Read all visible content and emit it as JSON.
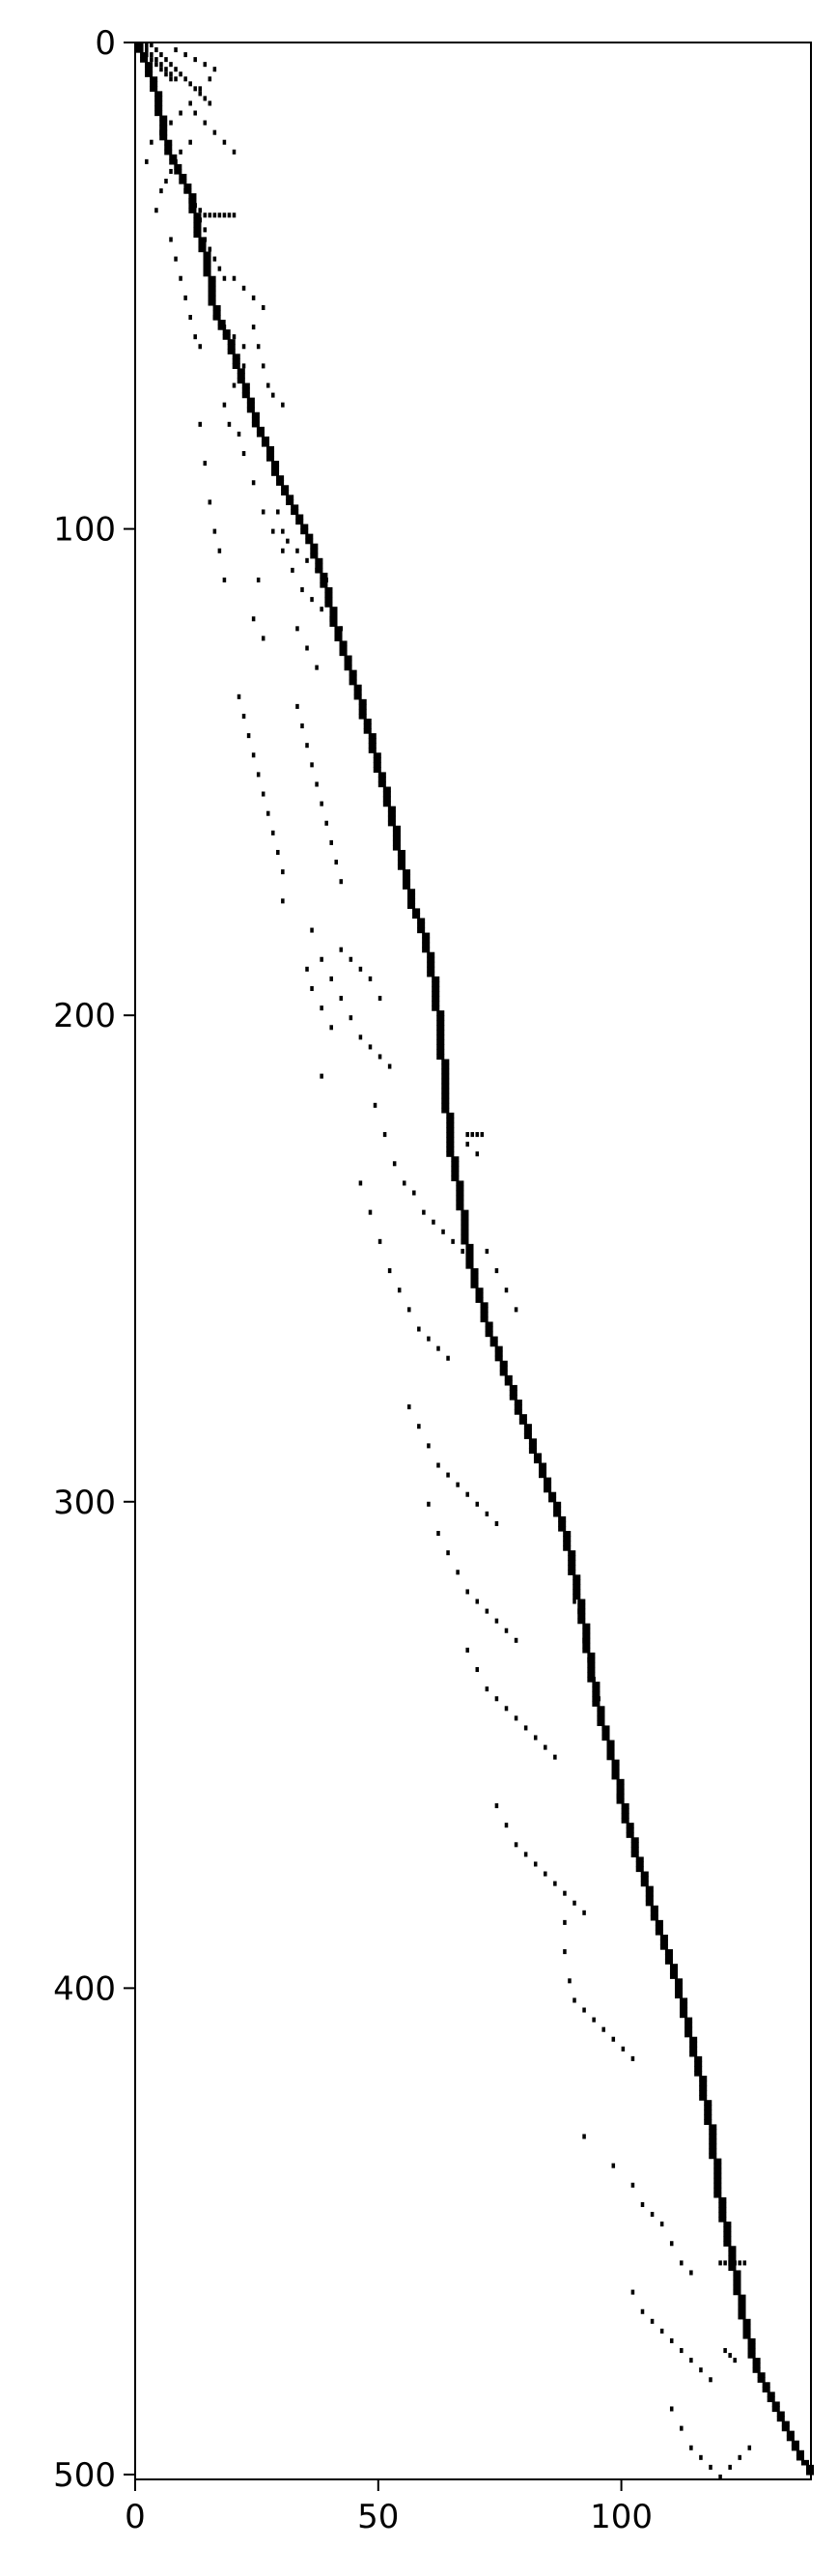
{
  "chart_data": {
    "type": "heatmap",
    "subtype": "sparsity-pattern",
    "title": "",
    "xlabel": "",
    "ylabel": "",
    "xlim": [
      0,
      139
    ],
    "ylim": [
      501,
      0
    ],
    "x_ticks": [
      {
        "value": 0,
        "label": "0"
      },
      {
        "value": 50,
        "label": "50"
      },
      {
        "value": 100,
        "label": "100"
      }
    ],
    "y_ticks": [
      {
        "value": 0,
        "label": "0"
      },
      {
        "value": 100,
        "label": "100"
      },
      {
        "value": 200,
        "label": "200"
      },
      {
        "value": 300,
        "label": "300"
      },
      {
        "value": 400,
        "label": "400"
      },
      {
        "value": 500,
        "label": "500"
      }
    ],
    "grid": false,
    "colors": {
      "nonzero": "#000000",
      "zero": "#ffffff",
      "frame": "#000000"
    },
    "diagonal_path": [
      [
        0,
        0
      ],
      [
        3,
        8
      ],
      [
        4,
        12
      ],
      [
        6,
        22
      ],
      [
        8,
        26
      ],
      [
        11,
        32
      ],
      [
        12,
        38
      ],
      [
        14,
        44
      ],
      [
        15,
        52
      ],
      [
        17,
        58
      ],
      [
        19,
        62
      ],
      [
        21,
        68
      ],
      [
        23,
        74
      ],
      [
        25,
        80
      ],
      [
        27,
        84
      ],
      [
        29,
        90
      ],
      [
        31,
        94
      ],
      [
        34,
        100
      ],
      [
        36,
        104
      ],
      [
        38,
        110
      ],
      [
        40,
        118
      ],
      [
        44,
        130
      ],
      [
        47,
        140
      ],
      [
        49,
        148
      ],
      [
        52,
        158
      ],
      [
        54,
        168
      ],
      [
        56,
        176
      ],
      [
        59,
        184
      ],
      [
        61,
        194
      ],
      [
        62,
        204
      ],
      [
        63,
        214
      ],
      [
        64,
        226
      ],
      [
        66,
        236
      ],
      [
        67,
        244
      ],
      [
        69,
        254
      ],
      [
        72,
        264
      ],
      [
        75,
        272
      ],
      [
        78,
        280
      ],
      [
        81,
        288
      ],
      [
        84,
        296
      ],
      [
        87,
        304
      ],
      [
        89,
        312
      ],
      [
        91,
        322
      ],
      [
        93,
        334
      ],
      [
        95,
        344
      ],
      [
        98,
        354
      ],
      [
        100,
        364
      ],
      [
        103,
        374
      ],
      [
        106,
        384
      ],
      [
        110,
        396
      ],
      [
        113,
        408
      ],
      [
        116,
        420
      ],
      [
        118,
        430
      ],
      [
        119,
        440
      ],
      [
        121,
        450
      ],
      [
        123,
        460
      ],
      [
        125,
        470
      ],
      [
        127,
        478
      ],
      [
        131,
        486
      ],
      [
        134,
        492
      ],
      [
        136,
        496
      ],
      [
        139,
        500
      ]
    ],
    "nonzero_entries": [
      [
        0,
        0
      ],
      [
        1,
        0
      ],
      [
        1,
        1
      ],
      [
        2,
        1
      ],
      [
        2,
        2
      ],
      [
        3,
        2
      ],
      [
        3,
        3
      ],
      [
        4,
        3
      ],
      [
        4,
        4
      ],
      [
        5,
        4
      ],
      [
        5,
        5
      ],
      [
        6,
        5
      ],
      [
        6,
        6
      ],
      [
        7,
        6
      ],
      [
        7,
        7
      ],
      [
        8,
        7
      ],
      [
        2,
        0
      ],
      [
        3,
        0
      ],
      [
        4,
        1
      ],
      [
        5,
        2
      ],
      [
        6,
        3
      ],
      [
        7,
        4
      ],
      [
        8,
        5
      ],
      [
        9,
        6
      ],
      [
        10,
        7
      ],
      [
        11,
        8
      ],
      [
        12,
        9
      ],
      [
        13,
        10
      ],
      [
        14,
        11
      ],
      [
        15,
        12
      ],
      [
        8,
        1
      ],
      [
        10,
        2
      ],
      [
        12,
        3
      ],
      [
        14,
        4
      ],
      [
        16,
        5
      ],
      [
        15,
        7
      ],
      [
        13,
        9
      ],
      [
        11,
        12
      ],
      [
        9,
        14
      ],
      [
        7,
        16
      ],
      [
        5,
        18
      ],
      [
        3,
        20
      ],
      [
        2,
        24
      ],
      [
        12,
        14
      ],
      [
        14,
        16
      ],
      [
        16,
        18
      ],
      [
        18,
        20
      ],
      [
        20,
        22
      ],
      [
        11,
        20
      ],
      [
        9,
        22
      ],
      [
        8,
        24
      ],
      [
        7,
        26
      ],
      [
        6,
        28
      ],
      [
        5,
        30
      ],
      [
        4,
        34
      ],
      [
        10,
        30
      ],
      [
        11,
        32
      ],
      [
        12,
        33
      ],
      [
        13,
        34
      ],
      [
        14,
        35
      ],
      [
        15,
        35
      ],
      [
        16,
        35
      ],
      [
        17,
        35
      ],
      [
        18,
        35
      ],
      [
        19,
        35
      ],
      [
        20,
        35
      ],
      [
        13,
        36
      ],
      [
        14,
        38
      ],
      [
        14,
        40
      ],
      [
        15,
        42
      ],
      [
        16,
        44
      ],
      [
        17,
        46
      ],
      [
        18,
        48
      ],
      [
        20,
        48
      ],
      [
        22,
        50
      ],
      [
        24,
        52
      ],
      [
        26,
        54
      ],
      [
        7,
        40
      ],
      [
        8,
        44
      ],
      [
        9,
        48
      ],
      [
        10,
        52
      ],
      [
        11,
        56
      ],
      [
        12,
        60
      ],
      [
        13,
        62
      ],
      [
        16,
        56
      ],
      [
        18,
        58
      ],
      [
        20,
        60
      ],
      [
        22,
        62
      ],
      [
        24,
        58
      ],
      [
        25,
        62
      ],
      [
        26,
        66
      ],
      [
        27,
        70
      ],
      [
        28,
        72
      ],
      [
        30,
        74
      ],
      [
        22,
        66
      ],
      [
        20,
        70
      ],
      [
        18,
        74
      ],
      [
        19,
        78
      ],
      [
        21,
        80
      ],
      [
        13,
        78
      ],
      [
        14,
        86
      ],
      [
        15,
        94
      ],
      [
        16,
        100
      ],
      [
        17,
        104
      ],
      [
        18,
        110
      ],
      [
        22,
        84
      ],
      [
        24,
        90
      ],
      [
        26,
        96
      ],
      [
        28,
        100
      ],
      [
        30,
        104
      ],
      [
        32,
        108
      ],
      [
        34,
        112
      ],
      [
        36,
        114
      ],
      [
        38,
        116
      ],
      [
        40,
        118
      ],
      [
        42,
        120
      ],
      [
        25,
        110
      ],
      [
        24,
        118
      ],
      [
        26,
        122
      ],
      [
        29,
        96
      ],
      [
        30,
        100
      ],
      [
        31,
        102
      ],
      [
        33,
        104
      ],
      [
        35,
        106
      ],
      [
        37,
        108
      ],
      [
        39,
        110
      ],
      [
        33,
        120
      ],
      [
        35,
        124
      ],
      [
        37,
        128
      ],
      [
        21,
        134
      ],
      [
        22,
        138
      ],
      [
        23,
        142
      ],
      [
        24,
        146
      ],
      [
        25,
        150
      ],
      [
        26,
        154
      ],
      [
        27,
        158
      ],
      [
        28,
        162
      ],
      [
        29,
        166
      ],
      [
        30,
        170
      ],
      [
        33,
        136
      ],
      [
        34,
        140
      ],
      [
        35,
        144
      ],
      [
        36,
        148
      ],
      [
        37,
        152
      ],
      [
        38,
        156
      ],
      [
        39,
        160
      ],
      [
        40,
        164
      ],
      [
        41,
        168
      ],
      [
        42,
        172
      ],
      [
        30,
        176
      ],
      [
        36,
        182
      ],
      [
        38,
        188
      ],
      [
        40,
        192
      ],
      [
        42,
        196
      ],
      [
        44,
        200
      ],
      [
        46,
        204
      ],
      [
        48,
        206
      ],
      [
        50,
        208
      ],
      [
        52,
        210
      ],
      [
        35,
        190
      ],
      [
        36,
        194
      ],
      [
        38,
        198
      ],
      [
        40,
        202
      ],
      [
        38,
        212
      ],
      [
        42,
        186
      ],
      [
        44,
        188
      ],
      [
        46,
        190
      ],
      [
        48,
        192
      ],
      [
        50,
        196
      ],
      [
        49,
        218
      ],
      [
        51,
        224
      ],
      [
        53,
        230
      ],
      [
        55,
        234
      ],
      [
        57,
        236
      ],
      [
        59,
        240
      ],
      [
        61,
        242
      ],
      [
        63,
        244
      ],
      [
        65,
        246
      ],
      [
        67,
        248
      ],
      [
        46,
        234
      ],
      [
        48,
        240
      ],
      [
        50,
        246
      ],
      [
        52,
        252
      ],
      [
        54,
        256
      ],
      [
        56,
        260
      ],
      [
        58,
        264
      ],
      [
        60,
        266
      ],
      [
        62,
        268
      ],
      [
        64,
        270
      ],
      [
        56,
        280
      ],
      [
        58,
        284
      ],
      [
        60,
        288
      ],
      [
        62,
        292
      ],
      [
        64,
        294
      ],
      [
        66,
        296
      ],
      [
        68,
        298
      ],
      [
        70,
        300
      ],
      [
        72,
        302
      ],
      [
        74,
        304
      ],
      [
        60,
        300
      ],
      [
        62,
        306
      ],
      [
        64,
        310
      ],
      [
        66,
        314
      ],
      [
        68,
        318
      ],
      [
        70,
        320
      ],
      [
        72,
        322
      ],
      [
        74,
        324
      ],
      [
        76,
        326
      ],
      [
        78,
        328
      ],
      [
        68,
        330
      ],
      [
        70,
        334
      ],
      [
        72,
        338
      ],
      [
        74,
        340
      ],
      [
        76,
        342
      ],
      [
        78,
        344
      ],
      [
        80,
        346
      ],
      [
        82,
        348
      ],
      [
        84,
        350
      ],
      [
        86,
        352
      ],
      [
        74,
        362
      ],
      [
        76,
        366
      ],
      [
        78,
        370
      ],
      [
        80,
        372
      ],
      [
        82,
        374
      ],
      [
        84,
        376
      ],
      [
        86,
        378
      ],
      [
        88,
        380
      ],
      [
        90,
        382
      ],
      [
        92,
        384
      ],
      [
        88,
        386
      ],
      [
        88,
        392
      ],
      [
        89,
        398
      ],
      [
        90,
        402
      ],
      [
        92,
        404
      ],
      [
        94,
        406
      ],
      [
        96,
        408
      ],
      [
        98,
        410
      ],
      [
        100,
        412
      ],
      [
        102,
        414
      ],
      [
        92,
        430
      ],
      [
        98,
        436
      ],
      [
        102,
        440
      ],
      [
        104,
        444
      ],
      [
        106,
        446
      ],
      [
        108,
        448
      ],
      [
        110,
        452
      ],
      [
        112,
        456
      ],
      [
        114,
        458
      ],
      [
        102,
        462
      ],
      [
        104,
        466
      ],
      [
        106,
        468
      ],
      [
        108,
        470
      ],
      [
        110,
        472
      ],
      [
        112,
        474
      ],
      [
        114,
        476
      ],
      [
        116,
        478
      ],
      [
        118,
        480
      ],
      [
        110,
        486
      ],
      [
        112,
        490
      ],
      [
        114,
        494
      ],
      [
        116,
        496
      ],
      [
        118,
        498
      ],
      [
        120,
        500
      ],
      [
        122,
        498
      ],
      [
        124,
        496
      ],
      [
        126,
        494
      ],
      [
        120,
        456
      ],
      [
        121,
        456
      ],
      [
        122,
        456
      ],
      [
        123,
        456
      ],
      [
        124,
        456
      ],
      [
        125,
        456
      ],
      [
        121,
        474
      ],
      [
        122,
        475
      ],
      [
        123,
        476
      ],
      [
        68,
        224
      ],
      [
        69,
        224
      ],
      [
        70,
        224
      ],
      [
        71,
        224
      ],
      [
        68,
        226
      ],
      [
        70,
        228
      ],
      [
        72,
        248
      ],
      [
        74,
        252
      ],
      [
        76,
        256
      ],
      [
        78,
        260
      ],
      [
        90,
        320
      ],
      [
        91,
        322
      ],
      [
        92,
        328
      ],
      [
        93,
        332
      ],
      [
        94,
        336
      ],
      [
        95,
        340
      ],
      [
        96,
        346
      ],
      [
        97,
        352
      ],
      [
        98,
        356
      ],
      [
        99,
        360
      ]
    ]
  }
}
